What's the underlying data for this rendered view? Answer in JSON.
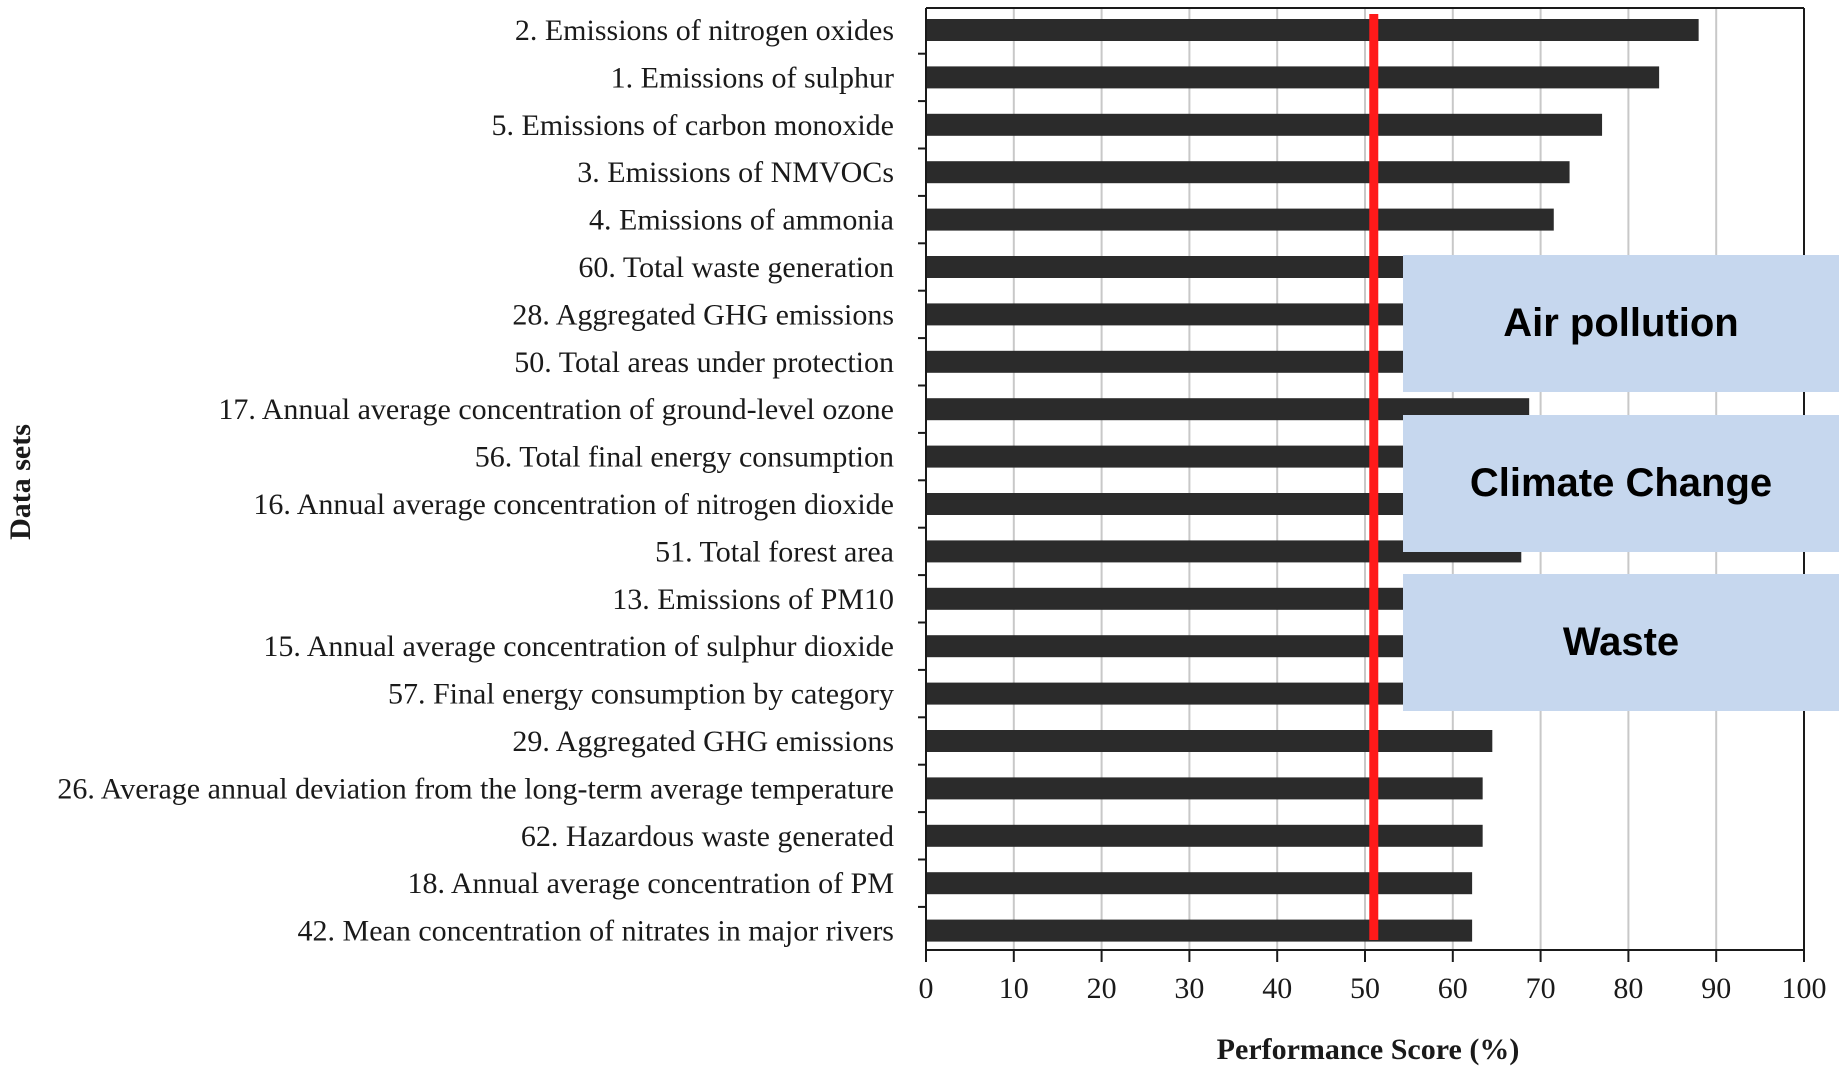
{
  "chart_data": {
    "type": "bar",
    "orientation": "horizontal",
    "xlabel": "Performance Score (%)",
    "ylabel": "Data sets",
    "xlim": [
      0,
      100
    ],
    "xticks": [
      0,
      10,
      20,
      30,
      40,
      50,
      60,
      70,
      80,
      90,
      100
    ],
    "grid": "vertical",
    "reference_line": {
      "x": 51,
      "color": "#ff1a1a"
    },
    "bar_color": "#2b2b2b",
    "categories": [
      "2. Emissions of nitrogen oxides",
      "1. Emissions of sulphur",
      "5. Emissions of carbon monoxide",
      "3. Emissions of NMVOCs",
      "4. Emissions of ammonia",
      "60. Total waste generation",
      "28. Aggregated GHG emissions",
      "50. Total areas under protection",
      "17. Annual average concentration of ground-level ozone",
      "56. Total final energy consumption",
      "16. Annual average concentration of nitrogen dioxide",
      "51. Total forest area",
      "13. Emissions of PM10",
      "15. Annual average concentration of sulphur dioxide",
      "57. Final energy consumption by category",
      "29. Aggregated GHG emissions",
      "26. Average annual deviation from the long-term average temperature",
      "62. Hazardous waste generated",
      "18. Annual average concentration of PM",
      "42. Mean concentration of nitrates in major rivers"
    ],
    "values": [
      88,
      83.5,
      77,
      73.3,
      71.5,
      69.6,
      69.3,
      69,
      68.7,
      68.4,
      68.1,
      67.8,
      67.1,
      66.5,
      65.9,
      64.5,
      63.4,
      63.4,
      62.2,
      62.2
    ]
  },
  "overlays": [
    {
      "label": "Air pollution"
    },
    {
      "label": "Climate Change"
    },
    {
      "label": "Waste"
    }
  ],
  "colors": {
    "overlay_background": "#c6d7ee",
    "gridline": "#c8c8c8",
    "axis": "#1a1a1a"
  }
}
